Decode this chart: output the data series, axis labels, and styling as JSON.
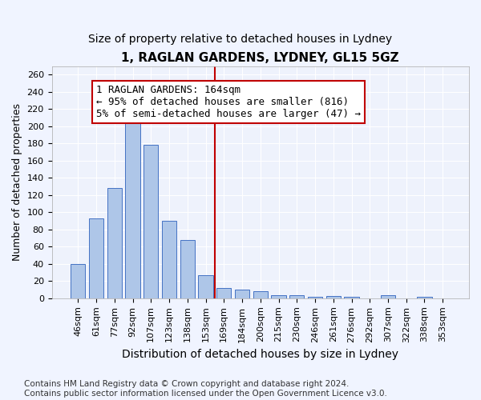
{
  "title": "1, RAGLAN GARDENS, LYDNEY, GL15 5GZ",
  "subtitle": "Size of property relative to detached houses in Lydney",
  "xlabel": "Distribution of detached houses by size in Lydney",
  "ylabel": "Number of detached properties",
  "categories": [
    "46sqm",
    "61sqm",
    "77sqm",
    "92sqm",
    "107sqm",
    "123sqm",
    "138sqm",
    "153sqm",
    "169sqm",
    "184sqm",
    "200sqm",
    "215sqm",
    "230sqm",
    "246sqm",
    "261sqm",
    "276sqm",
    "292sqm",
    "307sqm",
    "322sqm",
    "338sqm",
    "353sqm"
  ],
  "values": [
    40,
    93,
    128,
    205,
    178,
    90,
    68,
    27,
    12,
    10,
    8,
    4,
    4,
    2,
    3,
    2,
    0,
    4,
    0,
    2,
    0
  ],
  "bar_color": "#aec6e8",
  "bar_edge_color": "#4472c4",
  "vline_x_index": 8,
  "vline_color": "#c00000",
  "annotation_text": "1 RAGLAN GARDENS: 164sqm\n← 95% of detached houses are smaller (816)\n5% of semi-detached houses are larger (47) →",
  "annotation_box_color": "#ffffff",
  "annotation_box_edge_color": "#c00000",
  "ylim": [
    0,
    270
  ],
  "yticks": [
    0,
    20,
    40,
    60,
    80,
    100,
    120,
    140,
    160,
    180,
    200,
    220,
    240,
    260
  ],
  "footer_line1": "Contains HM Land Registry data © Crown copyright and database right 2024.",
  "footer_line2": "Contains public sector information licensed under the Open Government Licence v3.0.",
  "title_fontsize": 11,
  "subtitle_fontsize": 10,
  "xlabel_fontsize": 10,
  "ylabel_fontsize": 9,
  "tick_fontsize": 8,
  "annotation_fontsize": 9,
  "footer_fontsize": 7.5,
  "bg_color": "#f0f4ff",
  "plot_bg_color": "#eef2fc"
}
